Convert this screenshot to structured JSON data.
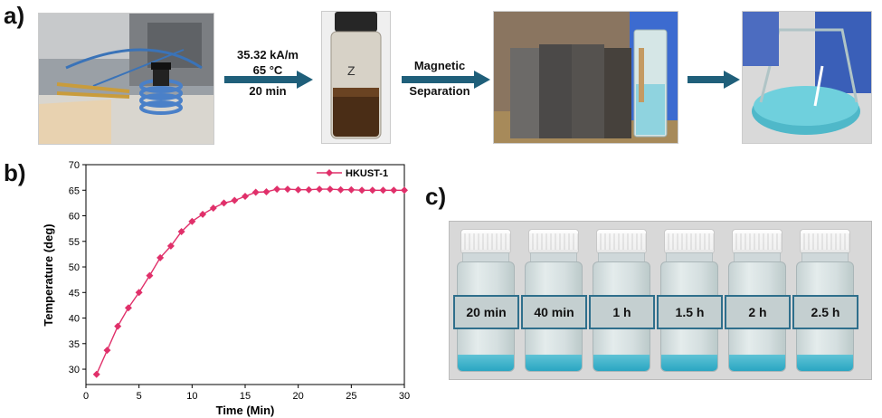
{
  "panels": {
    "a_label": "a)",
    "b_label": "b)",
    "c_label": "c)"
  },
  "process": {
    "step1_line1": "35.32 kA/m",
    "step1_line2": "65 °C",
    "step1_line3": "20 min",
    "step2_line1": "Magnetic",
    "step2_line2": "Separation"
  },
  "colors": {
    "series": "#e0306a",
    "arrow": "#1f5f7a",
    "vial_border": "#2f6f8c",
    "liquid": "#3ab2cc"
  },
  "chart_data": {
    "type": "line",
    "xlabel": "Time (Min)",
    "ylabel": "Temperature (deg)",
    "xlim": [
      0,
      30
    ],
    "ylim": [
      27,
      70
    ],
    "xticks": [
      0,
      5,
      10,
      15,
      20,
      25,
      30
    ],
    "yticks": [
      30,
      35,
      40,
      45,
      50,
      55,
      60,
      65,
      70
    ],
    "legend_position": "top-right",
    "grid": false,
    "series": [
      {
        "name": "HKUST-1",
        "color": "#e0306a",
        "marker": "diamond",
        "x": [
          1,
          2,
          3,
          4,
          5,
          6,
          7,
          8,
          9,
          10,
          11,
          12,
          13,
          14,
          15,
          16,
          17,
          18,
          19,
          20,
          21,
          22,
          23,
          24,
          25,
          26,
          27,
          28,
          29,
          30
        ],
        "y": [
          29,
          33.7,
          38.4,
          42,
          45,
          48.3,
          51.8,
          54.1,
          56.9,
          58.9,
          60.3,
          61.5,
          62.5,
          63,
          63.8,
          64.6,
          64.7,
          65.2,
          65.2,
          65.1,
          65.1,
          65.2,
          65.2,
          65.1,
          65.1,
          65,
          65,
          65,
          65,
          65
        ]
      }
    ]
  },
  "vials": [
    {
      "label": "20 min"
    },
    {
      "label": "40 min"
    },
    {
      "label": "1 h"
    },
    {
      "label": "1.5 h"
    },
    {
      "label": "2 h"
    },
    {
      "label": "2.5 h"
    }
  ]
}
